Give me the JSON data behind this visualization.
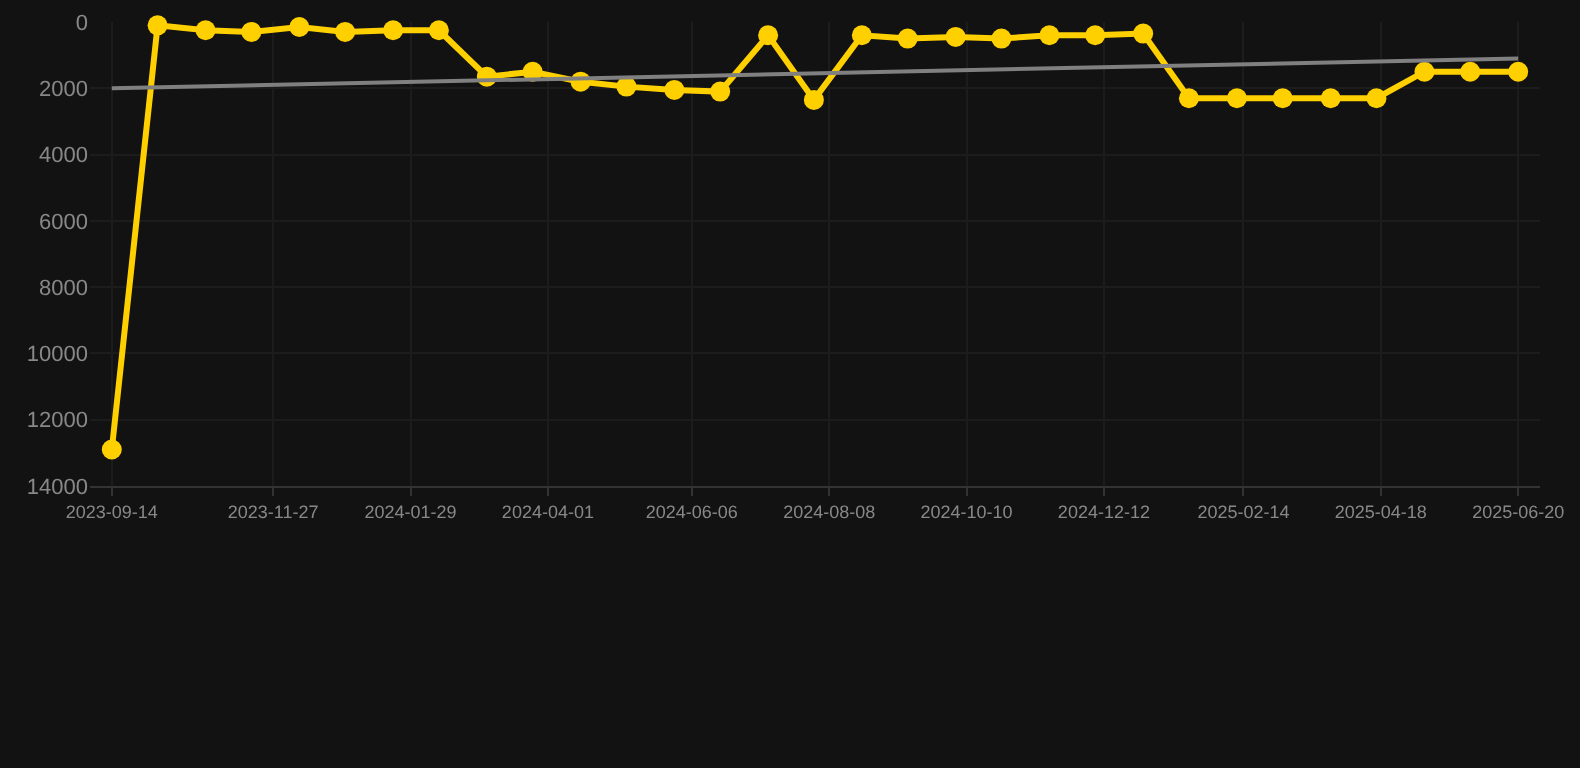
{
  "chart_data": {
    "type": "line",
    "x": [
      "2023-09-14",
      "2023-10-05",
      "2023-10-27",
      "2023-11-17",
      "2023-12-09",
      "2023-12-30",
      "2024-01-21",
      "2024-02-11",
      "2024-03-04",
      "2024-03-25",
      "2024-04-16",
      "2024-05-07",
      "2024-05-29",
      "2024-06-19",
      "2024-07-11",
      "2024-08-01",
      "2024-08-23",
      "2024-09-13",
      "2024-10-05",
      "2024-10-26",
      "2024-11-17",
      "2024-12-08",
      "2024-12-30",
      "2025-01-20",
      "2025-02-11",
      "2025-03-04",
      "2025-03-26",
      "2025-04-16",
      "2025-05-08",
      "2025-05-29",
      "2025-06-20"
    ],
    "series": [
      {
        "color": "#ffd000",
        "marker": "circle",
        "values": [
          12900,
          100,
          250,
          300,
          150,
          300,
          250,
          250,
          1650,
          1500,
          1800,
          1950,
          2050,
          2100,
          400,
          2350,
          400,
          500,
          450,
          500,
          400,
          400,
          350,
          2300,
          2300,
          2300,
          2300,
          2300,
          1500,
          1500,
          1500
        ]
      },
      {
        "type": "line",
        "color": "#808080",
        "marker": "none",
        "x": [
          "2023-09-14",
          "2025-06-20"
        ],
        "values": [
          2000,
          1100
        ]
      }
    ],
    "xlim": [
      "2023-09-04",
      "2025-06-30"
    ],
    "xticks": [
      "2023-09-14",
      "2023-11-27",
      "2024-01-29",
      "2024-04-01",
      "2024-06-06",
      "2024-08-08",
      "2024-10-10",
      "2024-12-12",
      "2025-02-14",
      "2025-04-18",
      "2025-06-20"
    ],
    "ylim": [
      14000,
      0
    ],
    "yticks": [
      0,
      2000,
      4000,
      6000,
      8000,
      10000,
      12000,
      14000
    ],
    "grid": true
  }
}
